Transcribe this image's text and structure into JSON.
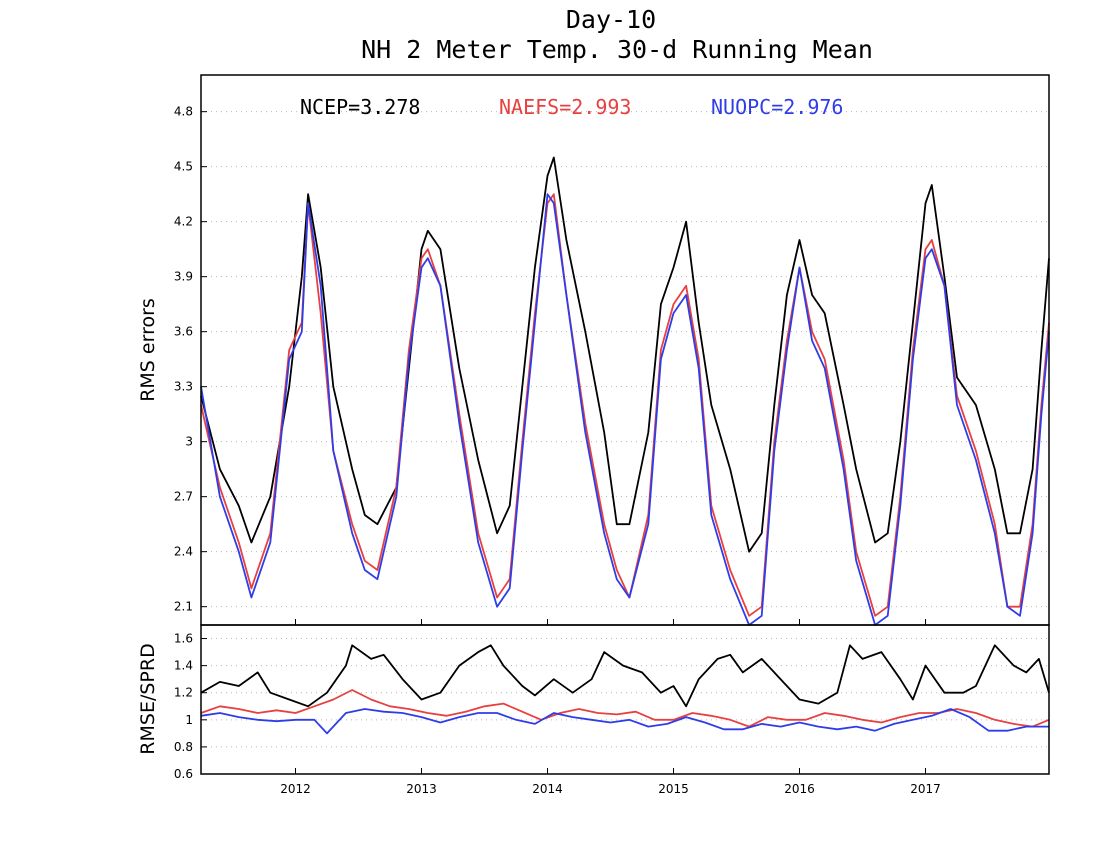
{
  "title_line1": "Day-10",
  "title_line2": "NH 2 Meter Temp. 30-d Running Mean",
  "colors": {
    "NCEP": "#000000",
    "NAEFS": "#e84040",
    "NUOPC": "#2f3de8"
  },
  "chart_data": [
    {
      "type": "line",
      "ylabel": "RMS errors",
      "ylim": [
        2.0,
        5.0
      ],
      "yticks": [
        2.1,
        2.4,
        2.7,
        3.0,
        3.3,
        3.6,
        3.9,
        4.2,
        4.5,
        4.8
      ],
      "ytick_labels": [
        "2.1",
        "2.4",
        "2.7",
        "3",
        "3.3",
        "3.6",
        "3.9",
        "4.2",
        "4.5",
        "4.8"
      ],
      "xlim": [
        2011.25,
        2017.98
      ],
      "xticks": [
        2012,
        2013,
        2014,
        2015,
        2016,
        2017
      ],
      "xtick_labels": [
        "2012",
        "2013",
        "2014",
        "2015",
        "2016",
        "2017"
      ],
      "grid": "horizontal dotted",
      "annotations": [
        {
          "series": "NCEP",
          "text": "NCEP=3.278"
        },
        {
          "series": "NAEFS",
          "text": "NAEFS=2.993"
        },
        {
          "series": "NUOPC",
          "text": "NUOPC=2.976"
        }
      ],
      "series": [
        {
          "name": "NCEP",
          "x": [
            2011.25,
            2011.4,
            2011.55,
            2011.65,
            2011.8,
            2011.95,
            2012.05,
            2012.1,
            2012.2,
            2012.3,
            2012.45,
            2012.55,
            2012.65,
            2012.8,
            2012.9,
            2013.0,
            2013.05,
            2013.15,
            2013.3,
            2013.45,
            2013.6,
            2013.7,
            2013.8,
            2013.9,
            2014.0,
            2014.05,
            2014.15,
            2014.3,
            2014.45,
            2014.55,
            2014.65,
            2014.8,
            2014.9,
            2015.0,
            2015.1,
            2015.2,
            2015.3,
            2015.45,
            2015.6,
            2015.7,
            2015.8,
            2015.9,
            2016.0,
            2016.1,
            2016.2,
            2016.35,
            2016.45,
            2016.6,
            2016.7,
            2016.8,
            2016.9,
            2017.0,
            2017.05,
            2017.15,
            2017.25,
            2017.4,
            2017.55,
            2017.65,
            2017.75,
            2017.85,
            2017.92,
            2017.98
          ],
          "y": [
            3.25,
            2.85,
            2.65,
            2.45,
            2.7,
            3.3,
            3.9,
            4.35,
            3.95,
            3.3,
            2.85,
            2.6,
            2.55,
            2.75,
            3.4,
            4.05,
            4.15,
            4.05,
            3.4,
            2.9,
            2.5,
            2.65,
            3.3,
            3.95,
            4.45,
            4.55,
            4.1,
            3.6,
            3.05,
            2.55,
            2.55,
            3.05,
            3.75,
            3.95,
            4.2,
            3.65,
            3.2,
            2.85,
            2.4,
            2.5,
            3.2,
            3.8,
            4.1,
            3.8,
            3.7,
            3.2,
            2.85,
            2.45,
            2.5,
            3.0,
            3.65,
            4.3,
            4.4,
            3.9,
            3.35,
            3.2,
            2.85,
            2.5,
            2.5,
            2.85,
            3.5,
            4.0
          ]
        },
        {
          "name": "NAEFS",
          "x": [
            2011.25,
            2011.4,
            2011.55,
            2011.65,
            2011.8,
            2011.95,
            2012.05,
            2012.1,
            2012.2,
            2012.3,
            2012.45,
            2012.55,
            2012.65,
            2012.8,
            2012.9,
            2013.0,
            2013.05,
            2013.15,
            2013.3,
            2013.45,
            2013.6,
            2013.7,
            2013.8,
            2013.9,
            2014.0,
            2014.05,
            2014.15,
            2014.3,
            2014.45,
            2014.55,
            2014.65,
            2014.8,
            2014.9,
            2015.0,
            2015.1,
            2015.2,
            2015.3,
            2015.45,
            2015.6,
            2015.7,
            2015.8,
            2015.9,
            2016.0,
            2016.1,
            2016.2,
            2016.35,
            2016.45,
            2016.6,
            2016.7,
            2016.8,
            2016.9,
            2017.0,
            2017.05,
            2017.15,
            2017.25,
            2017.4,
            2017.55,
            2017.65,
            2017.75,
            2017.85,
            2017.92,
            2017.98
          ],
          "y": [
            3.2,
            2.75,
            2.45,
            2.2,
            2.5,
            3.5,
            3.65,
            4.3,
            3.7,
            2.95,
            2.55,
            2.35,
            2.3,
            2.75,
            3.5,
            4.0,
            4.05,
            3.85,
            3.15,
            2.5,
            2.15,
            2.25,
            3.0,
            3.7,
            4.3,
            4.35,
            3.8,
            3.1,
            2.55,
            2.3,
            2.15,
            2.6,
            3.5,
            3.75,
            3.85,
            3.45,
            2.65,
            2.3,
            2.05,
            2.1,
            3.0,
            3.55,
            3.95,
            3.6,
            3.45,
            2.9,
            2.4,
            2.05,
            2.1,
            2.7,
            3.5,
            4.05,
            4.1,
            3.85,
            3.25,
            2.95,
            2.55,
            2.1,
            2.1,
            2.55,
            3.2,
            3.65
          ]
        },
        {
          "name": "NUOPC",
          "x": [
            2011.25,
            2011.4,
            2011.55,
            2011.65,
            2011.8,
            2011.95,
            2012.05,
            2012.1,
            2012.2,
            2012.3,
            2012.45,
            2012.55,
            2012.65,
            2012.8,
            2012.9,
            2013.0,
            2013.05,
            2013.15,
            2013.3,
            2013.45,
            2013.6,
            2013.7,
            2013.8,
            2013.9,
            2014.0,
            2014.05,
            2014.15,
            2014.3,
            2014.45,
            2014.55,
            2014.65,
            2014.8,
            2014.9,
            2015.0,
            2015.1,
            2015.2,
            2015.3,
            2015.45,
            2015.6,
            2015.7,
            2015.8,
            2015.9,
            2016.0,
            2016.1,
            2016.2,
            2016.35,
            2016.45,
            2016.6,
            2016.7,
            2016.8,
            2016.9,
            2017.0,
            2017.05,
            2017.15,
            2017.25,
            2017.4,
            2017.55,
            2017.65,
            2017.75,
            2017.85,
            2017.92,
            2017.98
          ],
          "y": [
            3.3,
            2.7,
            2.4,
            2.15,
            2.45,
            3.45,
            3.6,
            4.3,
            3.85,
            2.95,
            2.5,
            2.3,
            2.25,
            2.7,
            3.45,
            3.95,
            4.0,
            3.85,
            3.1,
            2.45,
            2.1,
            2.2,
            2.95,
            3.65,
            4.35,
            4.3,
            3.8,
            3.05,
            2.5,
            2.25,
            2.15,
            2.55,
            3.45,
            3.7,
            3.8,
            3.4,
            2.6,
            2.25,
            2.0,
            2.05,
            2.95,
            3.5,
            3.95,
            3.55,
            3.4,
            2.85,
            2.35,
            2.0,
            2.05,
            2.65,
            3.45,
            4.0,
            4.05,
            3.85,
            3.2,
            2.9,
            2.5,
            2.1,
            2.05,
            2.5,
            3.15,
            3.6
          ]
        }
      ]
    },
    {
      "type": "line",
      "ylabel": "RMSE/SPRD",
      "ylim": [
        0.6,
        1.7
      ],
      "yticks": [
        0.6,
        0.8,
        1.0,
        1.2,
        1.4,
        1.6
      ],
      "ytick_labels": [
        "0.6",
        "0.8",
        "1",
        "1.2",
        "1.4",
        "1.6"
      ],
      "xlim": [
        2011.25,
        2017.98
      ],
      "series": [
        {
          "name": "NCEP",
          "x": [
            2011.25,
            2011.4,
            2011.55,
            2011.7,
            2011.8,
            2011.95,
            2012.1,
            2012.25,
            2012.4,
            2012.45,
            2012.6,
            2012.7,
            2012.85,
            2013.0,
            2013.15,
            2013.3,
            2013.45,
            2013.55,
            2013.65,
            2013.8,
            2013.9,
            2014.05,
            2014.2,
            2014.35,
            2014.45,
            2014.6,
            2014.75,
            2014.9,
            2015.0,
            2015.1,
            2015.2,
            2015.35,
            2015.45,
            2015.55,
            2015.7,
            2015.85,
            2016.0,
            2016.15,
            2016.3,
            2016.4,
            2016.5,
            2016.65,
            2016.8,
            2016.9,
            2017.0,
            2017.15,
            2017.3,
            2017.4,
            2017.55,
            2017.7,
            2017.8,
            2017.9,
            2017.98
          ],
          "y": [
            1.2,
            1.28,
            1.25,
            1.35,
            1.2,
            1.15,
            1.1,
            1.2,
            1.4,
            1.55,
            1.45,
            1.48,
            1.3,
            1.15,
            1.2,
            1.4,
            1.5,
            1.55,
            1.4,
            1.25,
            1.18,
            1.3,
            1.2,
            1.3,
            1.5,
            1.4,
            1.35,
            1.2,
            1.25,
            1.1,
            1.3,
            1.45,
            1.48,
            1.35,
            1.45,
            1.3,
            1.15,
            1.12,
            1.2,
            1.55,
            1.45,
            1.5,
            1.3,
            1.15,
            1.4,
            1.2,
            1.2,
            1.25,
            1.55,
            1.4,
            1.35,
            1.45,
            1.2
          ]
        },
        {
          "name": "NAEFS",
          "x": [
            2011.25,
            2011.4,
            2011.55,
            2011.7,
            2011.85,
            2012.0,
            2012.15,
            2012.3,
            2012.45,
            2012.6,
            2012.75,
            2012.9,
            2013.05,
            2013.2,
            2013.35,
            2013.5,
            2013.65,
            2013.8,
            2013.95,
            2014.1,
            2014.25,
            2014.4,
            2014.55,
            2014.7,
            2014.85,
            2015.0,
            2015.15,
            2015.3,
            2015.45,
            2015.6,
            2015.75,
            2015.9,
            2016.05,
            2016.2,
            2016.35,
            2016.5,
            2016.65,
            2016.8,
            2016.95,
            2017.1,
            2017.25,
            2017.4,
            2017.55,
            2017.7,
            2017.85,
            2017.98
          ],
          "y": [
            1.05,
            1.1,
            1.08,
            1.05,
            1.07,
            1.05,
            1.1,
            1.15,
            1.22,
            1.15,
            1.1,
            1.08,
            1.05,
            1.03,
            1.06,
            1.1,
            1.12,
            1.06,
            1.0,
            1.05,
            1.08,
            1.05,
            1.04,
            1.06,
            1.0,
            1.0,
            1.05,
            1.03,
            1.0,
            0.95,
            1.02,
            1.0,
            1.0,
            1.05,
            1.03,
            1.0,
            0.98,
            1.02,
            1.05,
            1.05,
            1.08,
            1.05,
            1.0,
            0.97,
            0.95,
            1.0
          ]
        },
        {
          "name": "NUOPC",
          "x": [
            2011.25,
            2011.4,
            2011.55,
            2011.7,
            2011.85,
            2012.0,
            2012.15,
            2012.25,
            2012.4,
            2012.55,
            2012.7,
            2012.85,
            2013.0,
            2013.15,
            2013.3,
            2013.45,
            2013.6,
            2013.75,
            2013.9,
            2014.05,
            2014.2,
            2014.35,
            2014.5,
            2014.65,
            2014.8,
            2014.95,
            2015.1,
            2015.25,
            2015.4,
            2015.55,
            2015.7,
            2015.85,
            2016.0,
            2016.15,
            2016.3,
            2016.45,
            2016.6,
            2016.75,
            2016.9,
            2017.05,
            2017.2,
            2017.35,
            2017.5,
            2017.65,
            2017.8,
            2017.98
          ],
          "y": [
            1.03,
            1.05,
            1.02,
            1.0,
            0.99,
            1.0,
            1.0,
            0.9,
            1.05,
            1.08,
            1.06,
            1.05,
            1.02,
            0.98,
            1.02,
            1.05,
            1.05,
            1.0,
            0.97,
            1.05,
            1.02,
            1.0,
            0.98,
            1.0,
            0.95,
            0.97,
            1.02,
            0.98,
            0.93,
            0.93,
            0.97,
            0.95,
            0.98,
            0.95,
            0.93,
            0.95,
            0.92,
            0.97,
            1.0,
            1.03,
            1.08,
            1.02,
            0.92,
            0.92,
            0.95,
            0.95
          ]
        }
      ]
    }
  ]
}
